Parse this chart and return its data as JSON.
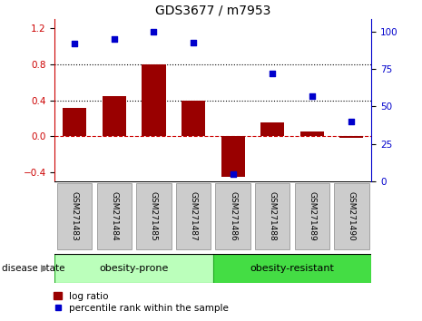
{
  "title": "GDS3677 / m7953",
  "categories": [
    "GSM271483",
    "GSM271484",
    "GSM271485",
    "GSM271487",
    "GSM271486",
    "GSM271488",
    "GSM271489",
    "GSM271490"
  ],
  "log_ratio": [
    0.32,
    0.45,
    0.8,
    0.4,
    -0.45,
    0.15,
    0.05,
    -0.02
  ],
  "percentile_rank": [
    92,
    95,
    100,
    93,
    5,
    72,
    57,
    40
  ],
  "bar_color": "#990000",
  "scatter_color": "#0000cc",
  "ylim_left": [
    -0.5,
    1.3
  ],
  "ylim_right": [
    0,
    108.33
  ],
  "yticks_left": [
    -0.4,
    0.0,
    0.4,
    0.8,
    1.2
  ],
  "yticks_right": [
    0,
    25,
    50,
    75,
    100
  ],
  "hlines": [
    0.4,
    0.8
  ],
  "hline_zero_color": "#cc0000",
  "hline_dotted_color": "#000000",
  "group1_label": "obesity-prone",
  "group2_label": "obesity-resistant",
  "group1_indices": [
    0,
    1,
    2,
    3
  ],
  "group2_indices": [
    4,
    5,
    6,
    7
  ],
  "group1_color": "#bbffbb",
  "group2_color": "#44dd44",
  "disease_state_label": "disease state",
  "legend_bar_label": "log ratio",
  "legend_scatter_label": "percentile rank within the sample",
  "left_tick_color": "#cc0000",
  "right_tick_color": "#0000cc",
  "bar_width": 0.6,
  "title_fontsize": 10,
  "tick_fontsize": 7.5,
  "xtick_fontsize": 6.5,
  "label_fontsize": 7.5,
  "bg_color": "#ffffff"
}
